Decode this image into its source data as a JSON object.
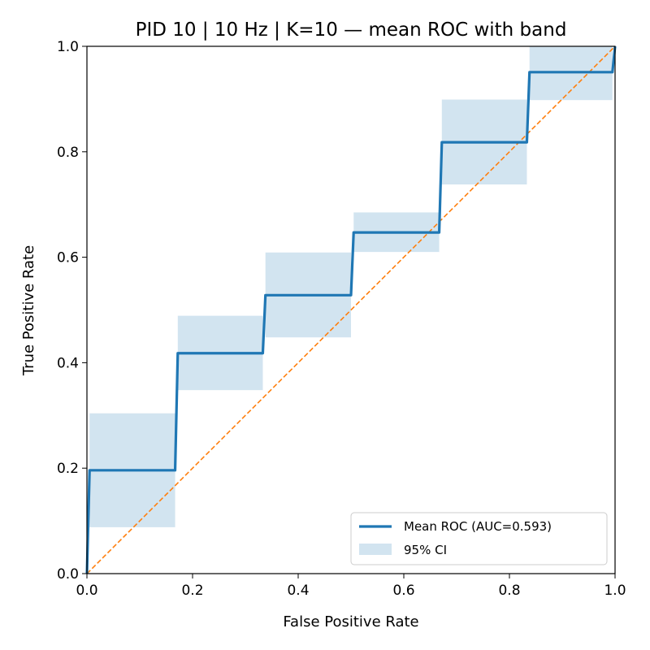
{
  "chart_data": {
    "type": "line",
    "title": "PID 10 | 10 Hz | K=10 — mean ROC with band",
    "xlabel": "False Positive Rate",
    "ylabel": "True Positive Rate",
    "xlim": [
      0,
      1
    ],
    "ylim": [
      0,
      1
    ],
    "xticks": [
      "0.0",
      "0.2",
      "0.4",
      "0.6",
      "0.8",
      "1.0"
    ],
    "yticks": [
      "0.0",
      "0.2",
      "0.4",
      "0.6",
      "0.8",
      "1.0"
    ],
    "grid": false,
    "legend_position": "bottom-right",
    "series": [
      {
        "name": "Mean ROC (AUC=0.593)",
        "color": "#1f77b4",
        "x": [
          0,
          0.005,
          0.167,
          0.172,
          0.333,
          0.338,
          0.5,
          0.505,
          0.667,
          0.672,
          0.833,
          0.838,
          0.995,
          1.0
        ],
        "y": [
          0,
          0.196,
          0.196,
          0.418,
          0.418,
          0.528,
          0.528,
          0.647,
          0.647,
          0.818,
          0.818,
          0.951,
          0.951,
          1.0
        ]
      }
    ],
    "band": {
      "name": "95% CI",
      "color": "#1f77b4",
      "opacity": 0.2,
      "steps": [
        {
          "x0": 0.005,
          "x1": 0.167,
          "low": 0.088,
          "high": 0.304
        },
        {
          "x0": 0.172,
          "x1": 0.333,
          "low": 0.348,
          "high": 0.489
        },
        {
          "x0": 0.338,
          "x1": 0.5,
          "low": 0.448,
          "high": 0.609
        },
        {
          "x0": 0.505,
          "x1": 0.667,
          "low": 0.61,
          "high": 0.685
        },
        {
          "x0": 0.672,
          "x1": 0.833,
          "low": 0.738,
          "high": 0.899
        },
        {
          "x0": 0.838,
          "x1": 0.995,
          "low": 0.898,
          "high": 1.0
        }
      ]
    },
    "reference_line": {
      "x": [
        0,
        1
      ],
      "y": [
        0,
        1
      ],
      "color": "#ff7f0e",
      "style": "dashed"
    }
  }
}
